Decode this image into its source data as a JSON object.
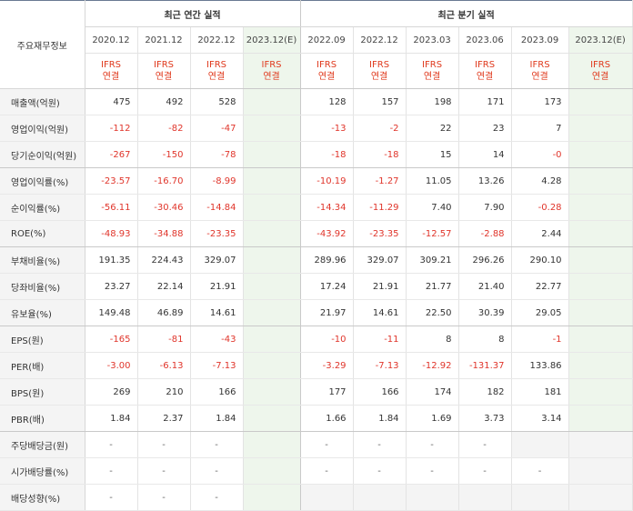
{
  "header": {
    "row_title": "주요재무정보",
    "annual_group": "최근 연간 실적",
    "quarter_group": "최근 분기 실적",
    "periods": [
      "2020.12",
      "2021.12",
      "2022.12",
      "2023.12(E)",
      "2022.09",
      "2022.12",
      "2023.03",
      "2023.06",
      "2023.09",
      "2023.12(E)"
    ],
    "basis_top": "IFRS",
    "basis_bottom": "연결"
  },
  "rows": [
    {
      "label": "매출액(억원)",
      "cells": [
        "475",
        "492",
        "528",
        "",
        "128",
        "157",
        "198",
        "171",
        "173",
        ""
      ],
      "grpend": false
    },
    {
      "label": "영업이익(억원)",
      "cells": [
        "-112",
        "-82",
        "-47",
        "",
        "-13",
        "-2",
        "22",
        "23",
        "7",
        ""
      ],
      "grpend": false
    },
    {
      "label": "당기순이익(억원)",
      "cells": [
        "-267",
        "-150",
        "-78",
        "",
        "-18",
        "-18",
        "15",
        "14",
        "-0",
        ""
      ],
      "grpend": true
    },
    {
      "label": "영업이익률(%)",
      "cells": [
        "-23.57",
        "-16.70",
        "-8.99",
        "",
        "-10.19",
        "-1.27",
        "11.05",
        "13.26",
        "4.28",
        ""
      ],
      "grpend": false
    },
    {
      "label": "순이익률(%)",
      "cells": [
        "-56.11",
        "-30.46",
        "-14.84",
        "",
        "-14.34",
        "-11.29",
        "7.40",
        "7.90",
        "-0.28",
        ""
      ],
      "grpend": false
    },
    {
      "label": "ROE(%)",
      "cells": [
        "-48.93",
        "-34.88",
        "-23.35",
        "",
        "-43.92",
        "-23.35",
        "-12.57",
        "-2.88",
        "2.44",
        ""
      ],
      "grpend": true
    },
    {
      "label": "부채비율(%)",
      "cells": [
        "191.35",
        "224.43",
        "329.07",
        "",
        "289.96",
        "329.07",
        "309.21",
        "296.26",
        "290.10",
        ""
      ],
      "grpend": false
    },
    {
      "label": "당좌비율(%)",
      "cells": [
        "23.27",
        "22.14",
        "21.91",
        "",
        "17.24",
        "21.91",
        "21.77",
        "21.40",
        "22.77",
        ""
      ],
      "grpend": false
    },
    {
      "label": "유보율(%)",
      "cells": [
        "149.48",
        "46.89",
        "14.61",
        "",
        "21.97",
        "14.61",
        "22.50",
        "30.39",
        "29.05",
        ""
      ],
      "grpend": true
    },
    {
      "label": "EPS(원)",
      "cells": [
        "-165",
        "-81",
        "-43",
        "",
        "-10",
        "-11",
        "8",
        "8",
        "-1",
        ""
      ],
      "grpend": false
    },
    {
      "label": "PER(배)",
      "cells": [
        "-3.00",
        "-6.13",
        "-7.13",
        "",
        "-3.29",
        "-7.13",
        "-12.92",
        "-131.37",
        "133.86",
        ""
      ],
      "grpend": false
    },
    {
      "label": "BPS(원)",
      "cells": [
        "269",
        "210",
        "166",
        "",
        "177",
        "166",
        "174",
        "182",
        "181",
        ""
      ],
      "grpend": false
    },
    {
      "label": "PBR(배)",
      "cells": [
        "1.84",
        "2.37",
        "1.84",
        "",
        "1.66",
        "1.84",
        "1.69",
        "3.73",
        "3.14",
        ""
      ],
      "grpend": true
    },
    {
      "label": "주당배당금(원)",
      "cells": [
        "-",
        "-",
        "-",
        "",
        "-",
        "-",
        "-",
        "-",
        "",
        ""
      ],
      "grpend": false
    },
    {
      "label": "시가배당률(%)",
      "cells": [
        "-",
        "-",
        "-",
        "",
        "-",
        "-",
        "-",
        "-",
        "-",
        ""
      ],
      "grpend": false
    },
    {
      "label": "배당성향(%)",
      "cells": [
        "-",
        "-",
        "-",
        "",
        "",
        "",
        "",
        "",
        "",
        ""
      ],
      "grpend": false
    }
  ]
}
